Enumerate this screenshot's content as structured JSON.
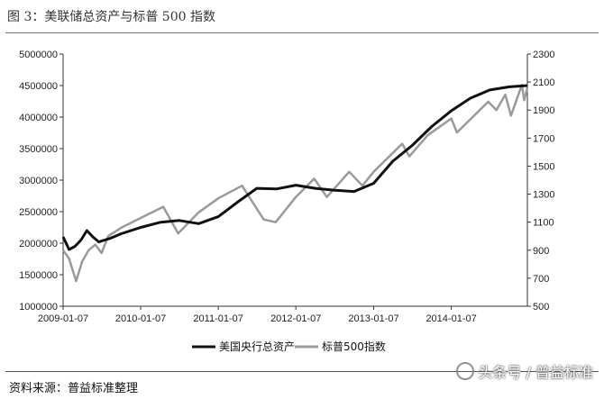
{
  "figure": {
    "title": "图 3：美联储总资产与标普 500 指数",
    "source": "资料来源：普益标准整理",
    "watermark": "头条号 / 普益标准"
  },
  "chart_data": {
    "type": "line",
    "title": "",
    "xlabel": "",
    "ylabel_left": "",
    "ylabel_right": "",
    "x_ticks": [
      "2009-01-07",
      "2010-01-07",
      "2011-01-07",
      "2012-01-07",
      "2013-01-07",
      "2014-01-07"
    ],
    "y_left": {
      "min": 1000000,
      "max": 5000000,
      "ticks": [
        1000000,
        1500000,
        2000000,
        2500000,
        3000000,
        3500000,
        4000000,
        4500000,
        5000000
      ]
    },
    "y_right": {
      "min": 500,
      "max": 2300,
      "ticks": [
        500,
        700,
        900,
        1100,
        1300,
        1500,
        1700,
        1900,
        2100,
        2300
      ]
    },
    "grid": false,
    "legend_position": "bottom",
    "series": [
      {
        "name": "美国央行总资产",
        "axis": "left",
        "color": "#111111",
        "points": [
          [
            "2009-01-07",
            2100000
          ],
          [
            "2009-02-04",
            1900000
          ],
          [
            "2009-03-04",
            1950000
          ],
          [
            "2009-04-01",
            2050000
          ],
          [
            "2009-04-29",
            2200000
          ],
          [
            "2009-05-27",
            2100000
          ],
          [
            "2009-06-24",
            2020000
          ],
          [
            "2009-07-22",
            2050000
          ],
          [
            "2009-08-19",
            2080000
          ],
          [
            "2009-10-07",
            2150000
          ],
          [
            "2010-01-07",
            2250000
          ],
          [
            "2010-04-07",
            2330000
          ],
          [
            "2010-07-07",
            2360000
          ],
          [
            "2010-10-07",
            2310000
          ],
          [
            "2011-01-07",
            2420000
          ],
          [
            "2011-04-07",
            2650000
          ],
          [
            "2011-07-07",
            2870000
          ],
          [
            "2011-10-07",
            2860000
          ],
          [
            "2012-01-07",
            2920000
          ],
          [
            "2012-04-07",
            2870000
          ],
          [
            "2012-07-07",
            2840000
          ],
          [
            "2012-10-07",
            2820000
          ],
          [
            "2013-01-07",
            2950000
          ],
          [
            "2013-04-07",
            3300000
          ],
          [
            "2013-07-07",
            3550000
          ],
          [
            "2013-10-07",
            3850000
          ],
          [
            "2014-01-07",
            4100000
          ],
          [
            "2014-04-07",
            4300000
          ],
          [
            "2014-07-07",
            4430000
          ],
          [
            "2014-10-07",
            4480000
          ],
          [
            "2014-12-31",
            4500000
          ]
        ]
      },
      {
        "name": "标普500指数",
        "axis": "right",
        "color": "#9a9a9a",
        "points": [
          [
            "2009-01-07",
            900
          ],
          [
            "2009-02-04",
            840
          ],
          [
            "2009-03-09",
            680
          ],
          [
            "2009-04-07",
            820
          ],
          [
            "2009-05-07",
            900
          ],
          [
            "2009-06-07",
            940
          ],
          [
            "2009-07-07",
            880
          ],
          [
            "2009-08-07",
            1000
          ],
          [
            "2009-10-07",
            1060
          ],
          [
            "2010-01-07",
            1130
          ],
          [
            "2010-04-23",
            1210
          ],
          [
            "2010-07-02",
            1020
          ],
          [
            "2010-10-07",
            1170
          ],
          [
            "2011-01-07",
            1270
          ],
          [
            "2011-04-29",
            1360
          ],
          [
            "2011-08-08",
            1120
          ],
          [
            "2011-10-04",
            1100
          ],
          [
            "2012-01-07",
            1280
          ],
          [
            "2012-04-02",
            1410
          ],
          [
            "2012-06-01",
            1280
          ],
          [
            "2012-09-14",
            1460
          ],
          [
            "2012-11-15",
            1360
          ],
          [
            "2013-01-07",
            1460
          ],
          [
            "2013-05-21",
            1660
          ],
          [
            "2013-06-24",
            1570
          ],
          [
            "2013-09-18",
            1720
          ],
          [
            "2014-01-07",
            1840
          ],
          [
            "2014-02-03",
            1740
          ],
          [
            "2014-06-30",
            1960
          ],
          [
            "2014-08-07",
            1900
          ],
          [
            "2014-09-18",
            2010
          ],
          [
            "2014-10-15",
            1860
          ],
          [
            "2014-12-05",
            2080
          ],
          [
            "2014-12-16",
            1970
          ],
          [
            "2014-12-31",
            2060
          ]
        ]
      }
    ]
  }
}
